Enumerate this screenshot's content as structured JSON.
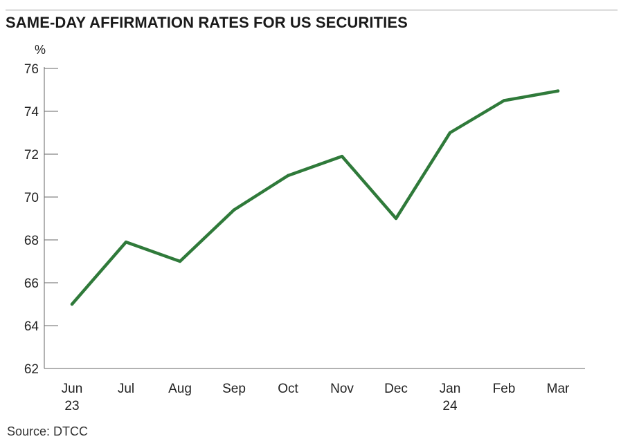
{
  "chart_data": {
    "type": "line",
    "title": "SAME-DAY AFFIRMATION RATES FOR US SECURITIES",
    "ylabel": "%",
    "xlabel": "",
    "ylim": [
      62,
      76
    ],
    "yticks": [
      62,
      64,
      66,
      68,
      70,
      72,
      74,
      76
    ],
    "categories": [
      "Jun",
      "Jul",
      "Aug",
      "Sep",
      "Oct",
      "Nov",
      "Dec",
      "Jan",
      "Feb",
      "Mar"
    ],
    "category_sublabels": [
      "23",
      "",
      "",
      "",
      "",
      "",
      "",
      "24",
      "",
      ""
    ],
    "series": [
      {
        "name": "Same-day affirmation rate",
        "values": [
          65.0,
          67.9,
          67.0,
          69.4,
          71.0,
          71.9,
          69.0,
          73.0,
          74.5,
          74.95
        ]
      }
    ],
    "line_color": "#2f7a3a",
    "grid": false,
    "source": "Source: DTCC"
  }
}
